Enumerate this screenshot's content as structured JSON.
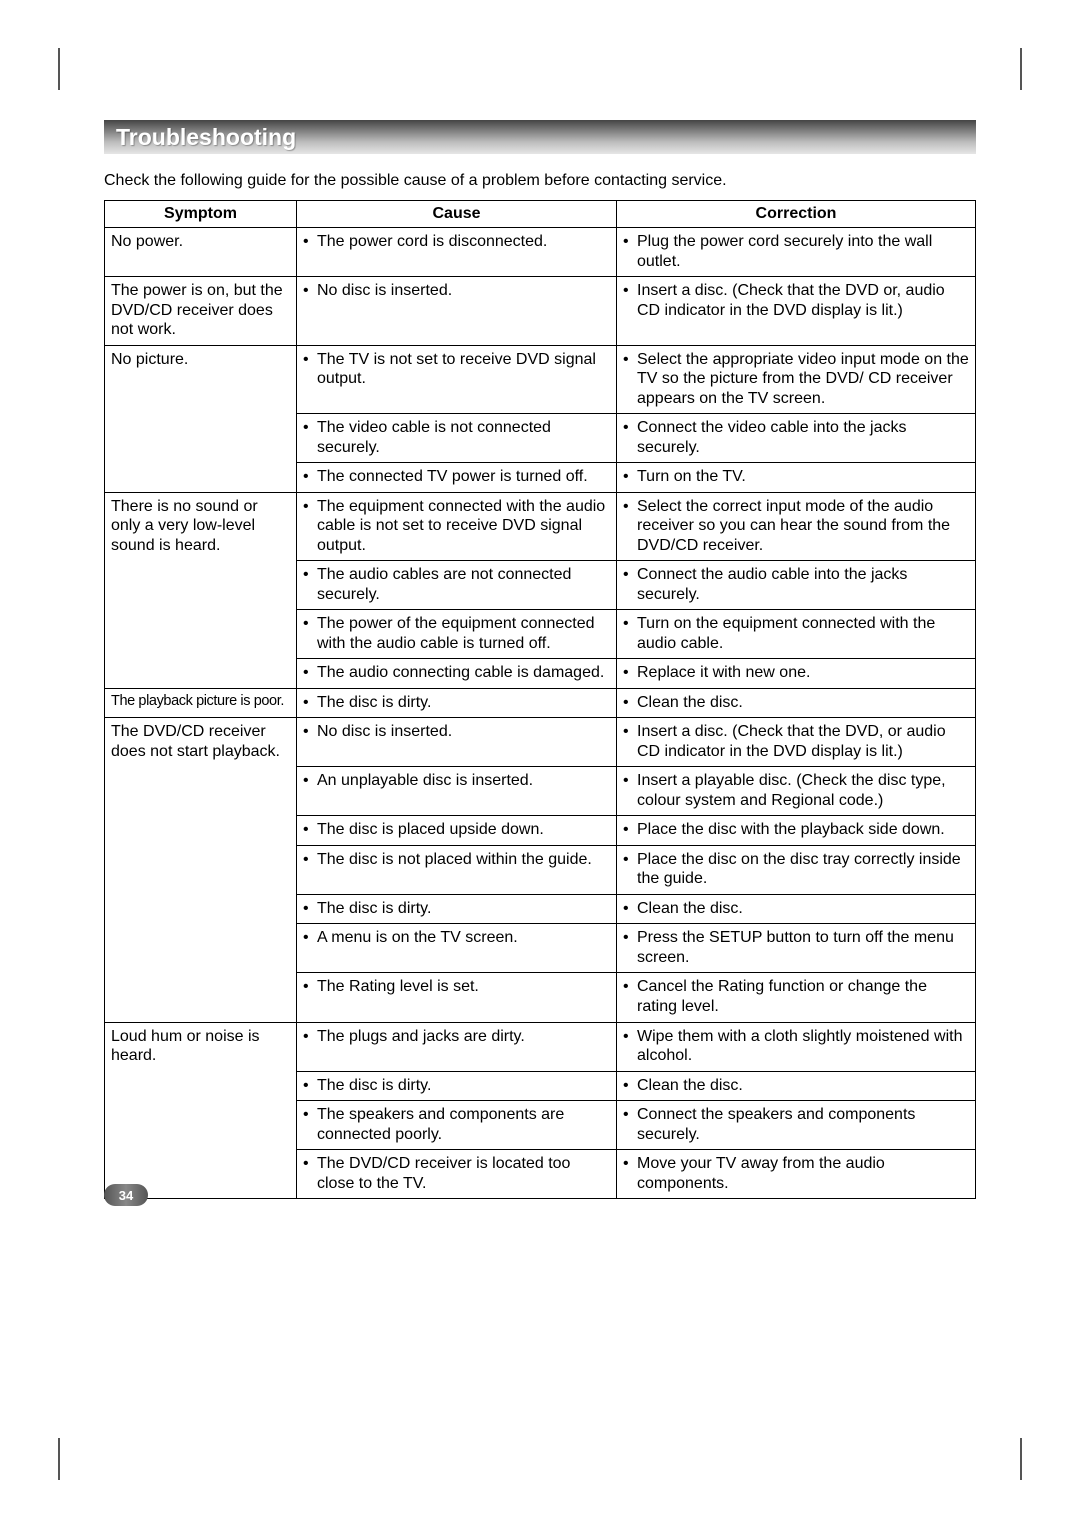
{
  "page": {
    "section_title": "Troubleshooting",
    "intro": "Check the following guide for the possible cause of a problem before contacting service.",
    "page_number": "34"
  },
  "table": {
    "headers": {
      "symptom": "Symptom",
      "cause": "Cause",
      "correction": "Correction"
    },
    "groups": [
      {
        "symptom": "No power.",
        "rows": [
          {
            "cause": "The power cord is disconnected.",
            "correction": "Plug the power cord securely into the wall outlet."
          }
        ]
      },
      {
        "symptom": "The power is on, but the DVD/CD receiver does not work.",
        "rows": [
          {
            "cause": "No disc is inserted.",
            "correction": "Insert a disc. (Check that the DVD or, audio CD indicator in the DVD display is lit.)"
          }
        ]
      },
      {
        "symptom": "No picture.",
        "rows": [
          {
            "cause": "The TV is not set to receive DVD signal output.",
            "correction": "Select the appropriate video input mode on the TV so the picture from the DVD/ CD receiver appears on the TV screen."
          },
          {
            "cause": "The video cable is not connected securely.",
            "correction": "Connect the video cable into the jacks securely."
          },
          {
            "cause": "The connected TV power is turned off.",
            "correction": "Turn on the TV."
          }
        ]
      },
      {
        "symptom": "There is no sound or only a very low-level sound is heard.",
        "rows": [
          {
            "cause": "The equipment connected with the audio cable is not set to receive DVD signal output.",
            "correction": "Select the correct input mode of the audio receiver so you can hear the sound from the DVD/CD receiver."
          },
          {
            "cause": "The audio cables are not connected securely.",
            "correction": "Connect the audio cable into the jacks securely."
          },
          {
            "cause": "The power of the equipment connected with the audio cable is turned off.",
            "correction": "Turn on the equipment connected with the audio cable."
          },
          {
            "cause": "The audio connecting cable is damaged.",
            "correction": "Replace it with new one."
          }
        ]
      },
      {
        "symptom": "The playback picture is  poor.",
        "symptom_class": "condensed",
        "rows": [
          {
            "cause": "The disc is dirty.",
            "correction": "Clean the disc."
          }
        ]
      },
      {
        "symptom": "The DVD/CD receiver does not start playback.",
        "rows": [
          {
            "cause": "No disc is inserted.",
            "correction": "Insert a disc. (Check that the DVD, or audio CD indicator in the DVD display is lit.)"
          },
          {
            "cause": "An unplayable disc is inserted.",
            "correction": "Insert a playable disc. (Check the disc type, colour system and Regional code.)"
          },
          {
            "cause": "The disc is placed upside down.",
            "correction": "Place the disc with the playback side down."
          },
          {
            "cause": "The disc is not placed within the guide.",
            "correction": "Place the disc on the disc tray correctly inside the guide."
          },
          {
            "cause": "The disc is dirty.",
            "correction": "Clean the disc."
          },
          {
            "cause": "A menu is on the TV screen.",
            "correction": "Press the SETUP button to turn off the menu screen."
          },
          {
            "cause": "The Rating level is set.",
            "correction": "Cancel the Rating function or change the rating level."
          }
        ]
      },
      {
        "symptom": "Loud hum or noise is heard.",
        "rows": [
          {
            "cause": "The plugs and jacks are dirty.",
            "correction": "Wipe them with a cloth slightly moistened with alcohol."
          },
          {
            "cause": "The disc is dirty.",
            "correction": "Clean the disc."
          },
          {
            "cause": "The speakers and components are connected poorly.",
            "correction": "Connect the speakers and components securely."
          },
          {
            "cause": "The DVD/CD receiver is located too close to the TV.",
            "correction": "Move your TV away from the audio components."
          }
        ]
      }
    ]
  }
}
